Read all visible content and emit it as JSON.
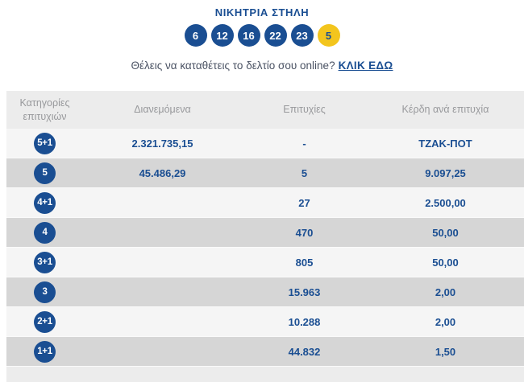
{
  "header": {
    "title": "ΝΙΚΗΤΡΙΑ ΣΤΗΛΗ",
    "numbers": [
      {
        "value": "6",
        "type": "main"
      },
      {
        "value": "12",
        "type": "main"
      },
      {
        "value": "16",
        "type": "main"
      },
      {
        "value": "22",
        "type": "main"
      },
      {
        "value": "23",
        "type": "main"
      },
      {
        "value": "5",
        "type": "joker"
      }
    ],
    "cta_text": "Θέλεις να καταθέτεις το δελτίο σου online?",
    "cta_link": "ΚΛΙΚ ΕΔΩ"
  },
  "table": {
    "columns": [
      "Κατηγορίες επιτυχιών",
      "Διανεμόμενα",
      "Επιτυχίες",
      "Κέρδη ανά επιτυχία"
    ],
    "rows": [
      {
        "category": "5+1",
        "distributed": "2.321.735,15",
        "winners": "-",
        "prize": "ΤΖΑΚ-ΠΟΤ"
      },
      {
        "category": "5",
        "distributed": "45.486,29",
        "winners": "5",
        "prize": "9.097,25"
      },
      {
        "category": "4+1",
        "distributed": "",
        "winners": "27",
        "prize": "2.500,00"
      },
      {
        "category": "4",
        "distributed": "",
        "winners": "470",
        "prize": "50,00"
      },
      {
        "category": "3+1",
        "distributed": "",
        "winners": "805",
        "prize": "50,00"
      },
      {
        "category": "3",
        "distributed": "",
        "winners": "15.963",
        "prize": "2,00"
      },
      {
        "category": "2+1",
        "distributed": "",
        "winners": "10.288",
        "prize": "2,00"
      },
      {
        "category": "1+1",
        "distributed": "",
        "winners": "44.832",
        "prize": "1,50"
      }
    ]
  },
  "colors": {
    "ball_blue": "#1a4e92",
    "ball_yellow": "#f3c51d",
    "value_text": "#1a4e92",
    "header_text": "#98999c",
    "row_light": "#f5f5f5",
    "row_dark": "#d6d6d6",
    "section_background": "#ececec"
  }
}
